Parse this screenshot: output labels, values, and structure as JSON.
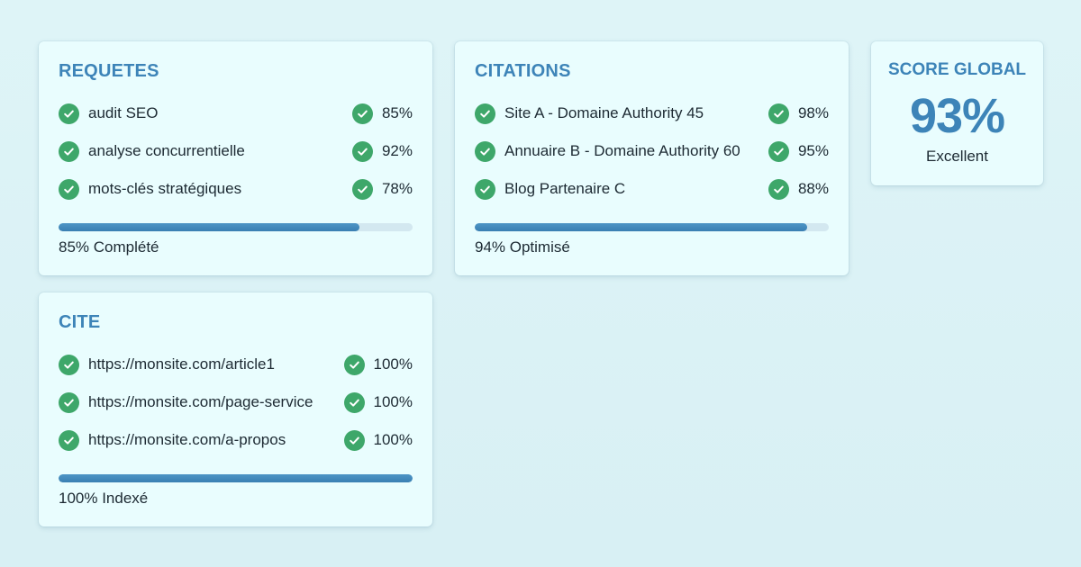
{
  "colors": {
    "accent": "#3d84b8",
    "check": "#3ea76a",
    "card_bg": "#e9fdfe",
    "page_bg": "#dcf3f6"
  },
  "requetes": {
    "title": "REQUETES",
    "items": [
      {
        "label": "audit SEO",
        "value": "85%",
        "icon": "check-circle-icon"
      },
      {
        "label": "analyse concurrentielle",
        "value": "92%",
        "icon": "check-circle-icon"
      },
      {
        "label": "mots-clés stratégiques",
        "value": "78%",
        "icon": "check-circle-icon"
      }
    ],
    "progress": 0.85,
    "caption": "85% Complété"
  },
  "citations": {
    "title": "CITATIONS",
    "items": [
      {
        "label": "Site A - Domaine Authority 45",
        "value": "98%",
        "icon": "check-circle-icon"
      },
      {
        "label": "Annuaire B - Domaine Authority 60",
        "value": "95%",
        "icon": "check-circle-icon"
      },
      {
        "label": "Blog Partenaire C",
        "value": "88%",
        "icon": "check-circle-icon"
      }
    ],
    "progress": 0.94,
    "caption": "94% Optimisé"
  },
  "score": {
    "title": "SCORE GLOBAL",
    "value": "93%",
    "label": "Excellent"
  },
  "cite": {
    "title": "CITE",
    "items": [
      {
        "label": "https://monsite.com/article1",
        "value": "100%",
        "icon": "check-circle-icon"
      },
      {
        "label": "https://monsite.com/page-service",
        "value": "100%",
        "icon": "check-circle-icon"
      },
      {
        "label": "https://monsite.com/a-propos",
        "value": "100%",
        "icon": "check-circle-icon"
      }
    ],
    "progress": 1.0,
    "caption": "100% Indexé"
  }
}
